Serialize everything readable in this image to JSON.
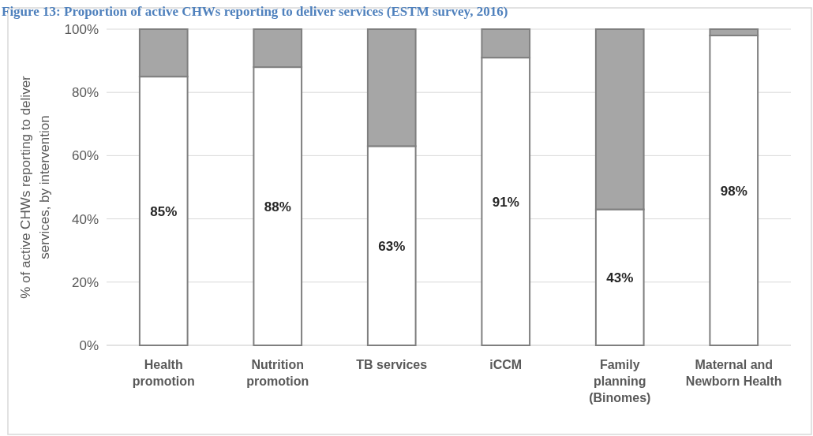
{
  "chart_data": {
    "type": "bar",
    "stacked": true,
    "title": "Figure 13: Proportion of active CHWs reporting to deliver services (ESTM survey, 2016)",
    "ylabel": "% of active CHWs  reporting to deliver services, by intervention",
    "categories": [
      "Health promotion",
      "Nutrition promotion",
      "TB services",
      "iCCM",
      "Family planning (Binomes)",
      "Maternal and Newborn Health"
    ],
    "series": [
      {
        "color": "#ffffff",
        "values": [
          85,
          88,
          63,
          91,
          43,
          98
        ],
        "value_labels": [
          "85%",
          "88%",
          "63%",
          "91%",
          "43%",
          "98%"
        ]
      },
      {
        "color": "#a6a6a6",
        "values": [
          15,
          12,
          37,
          9,
          57,
          2
        ]
      }
    ],
    "ylim": [
      0,
      100
    ],
    "yticks": [
      {
        "value": 0,
        "label": "0%"
      },
      {
        "value": 20,
        "label": "20%"
      },
      {
        "value": 40,
        "label": "40%"
      },
      {
        "value": 60,
        "label": "60%"
      },
      {
        "value": 80,
        "label": "80%"
      },
      {
        "value": 100,
        "label": "100%"
      }
    ],
    "grid": "y"
  }
}
